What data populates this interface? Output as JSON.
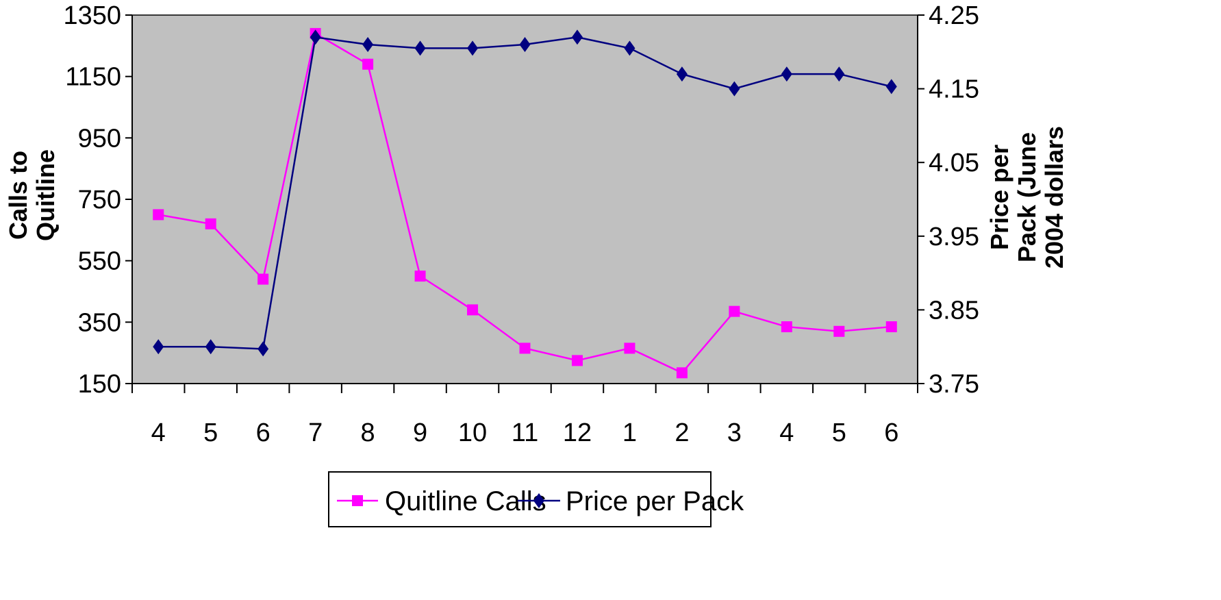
{
  "chart_data": {
    "type": "line",
    "title": "",
    "categories": [
      "4",
      "5",
      "6",
      "7",
      "8",
      "9",
      "10",
      "11",
      "12",
      "1",
      "2",
      "3",
      "4",
      "5",
      "6"
    ],
    "y_left": {
      "label_lines": [
        "Calls to",
        "Quitline"
      ],
      "ticks": [
        "1350",
        "1150",
        "950",
        "750",
        "550",
        "350",
        "150"
      ],
      "ylim": [
        150,
        1350
      ]
    },
    "y_right": {
      "label_lines": [
        "Price per",
        "Pack (June",
        "2004 dollars"
      ],
      "ticks": [
        "4.25",
        "4.15",
        "4.05",
        "3.95",
        "3.85",
        "3.75"
      ],
      "ylim": [
        3.75,
        4.25
      ]
    },
    "series": [
      {
        "name": "Quitline Calls",
        "axis": "left",
        "color": "#FF00FF",
        "marker": "square",
        "values": [
          700,
          670,
          490,
          1290,
          1190,
          500,
          390,
          265,
          225,
          265,
          185,
          385,
          335,
          320,
          335
        ]
      },
      {
        "name": "Price per Pack",
        "axis": "right",
        "color": "#000080",
        "marker": "diamond",
        "values": [
          3.8,
          3.8,
          3.797,
          4.22,
          4.21,
          4.205,
          4.205,
          4.21,
          4.22,
          4.205,
          4.17,
          4.15,
          4.17,
          4.17,
          4.153
        ]
      }
    ],
    "plot_background": "#C0C0C0",
    "grid": false,
    "legend_position": "bottom"
  }
}
